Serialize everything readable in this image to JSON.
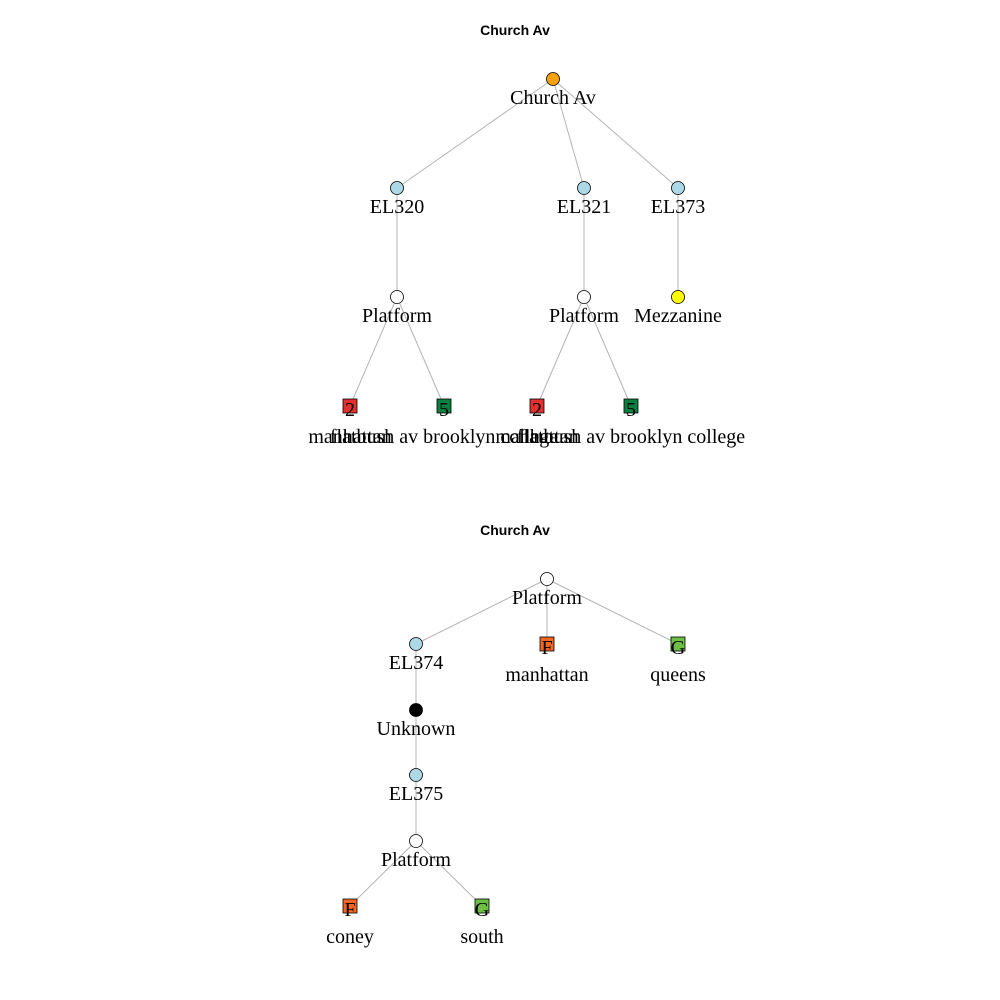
{
  "colors": {
    "station": "#f5a00c",
    "elevator": "#add8e6",
    "platform": "#ffffff",
    "mezzanine": "#ffff00",
    "unknown": "#000000",
    "line_2": "#e0312e",
    "line_5": "#0a8040",
    "line_F": "#f26522",
    "line_G": "#6cbe45",
    "edge": "#b3b3b3"
  },
  "diagrams": [
    {
      "id": "top",
      "title": "Church Av",
      "nodes": [
        {
          "id": "s",
          "kind": "station",
          "label": "Church Av"
        },
        {
          "id": "e320",
          "kind": "elevator",
          "label": "EL320"
        },
        {
          "id": "e321",
          "kind": "elevator",
          "label": "EL321"
        },
        {
          "id": "e373",
          "kind": "elevator",
          "label": "EL373"
        },
        {
          "id": "p1",
          "kind": "platform",
          "label": "Platform"
        },
        {
          "id": "p2",
          "kind": "platform",
          "label": "Platform"
        },
        {
          "id": "m",
          "kind": "mezzanine",
          "label": "Mezzanine"
        },
        {
          "id": "a",
          "kind": "line",
          "line": "2",
          "label": "manhattan"
        },
        {
          "id": "b",
          "kind": "line",
          "line": "5",
          "label": "flatbush av brooklyn college"
        },
        {
          "id": "c",
          "kind": "line",
          "line": "2",
          "label": "manhattan"
        },
        {
          "id": "d",
          "kind": "line",
          "line": "5",
          "label": "flatbush av brooklyn college"
        }
      ],
      "edges": [
        [
          "s",
          "e320"
        ],
        [
          "s",
          "e321"
        ],
        [
          "s",
          "e373"
        ],
        [
          "e320",
          "p1"
        ],
        [
          "e321",
          "p2"
        ],
        [
          "e373",
          "m"
        ],
        [
          "p1",
          "a"
        ],
        [
          "p1",
          "b"
        ],
        [
          "p2",
          "c"
        ],
        [
          "p2",
          "d"
        ]
      ]
    },
    {
      "id": "bottom",
      "title": "Church Av",
      "nodes": [
        {
          "id": "p0",
          "kind": "platform",
          "label": "Platform"
        },
        {
          "id": "e374",
          "kind": "elevator",
          "label": "EL374"
        },
        {
          "id": "f1",
          "kind": "line",
          "line": "F",
          "label": "manhattan"
        },
        {
          "id": "g1",
          "kind": "line",
          "line": "G",
          "label": "queens"
        },
        {
          "id": "u",
          "kind": "unknown",
          "label": "Unknown"
        },
        {
          "id": "e375",
          "kind": "elevator",
          "label": "EL375"
        },
        {
          "id": "p3",
          "kind": "platform",
          "label": "Platform"
        },
        {
          "id": "f2",
          "kind": "line",
          "line": "F",
          "label": "coney"
        },
        {
          "id": "g2",
          "kind": "line",
          "line": "G",
          "label": "south"
        }
      ],
      "edges": [
        [
          "p0",
          "e374"
        ],
        [
          "p0",
          "f1"
        ],
        [
          "p0",
          "g1"
        ],
        [
          "e374",
          "u"
        ],
        [
          "u",
          "e375"
        ],
        [
          "e375",
          "p3"
        ],
        [
          "p3",
          "f2"
        ],
        [
          "p3",
          "g2"
        ]
      ]
    }
  ]
}
